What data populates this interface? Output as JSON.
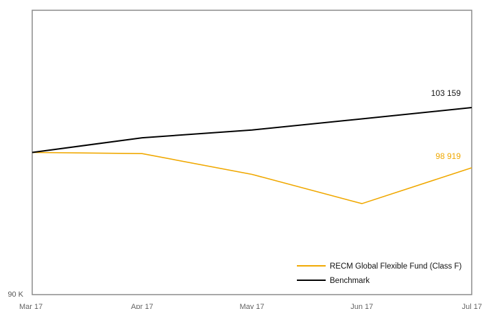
{
  "chart_data": {
    "type": "line",
    "categories": [
      "Mar 17",
      "Apr 17",
      "May 17",
      "Jun 17",
      "Jul 17"
    ],
    "y_tick_labels": [
      {
        "value": 90000,
        "label": "90 K"
      }
    ],
    "ylim": [
      90000,
      110000
    ],
    "series": [
      {
        "name": "RECM Global Flexible Fund (Class F)",
        "color": "#F0A800",
        "values": [
          100000,
          99920,
          98460,
          96400,
          98919
        ],
        "end_label": "98 919"
      },
      {
        "name": "Benchmark",
        "color": "#000000",
        "values": [
          100000,
          101030,
          101580,
          102360,
          103159
        ],
        "end_label": "103 159"
      }
    ],
    "legend_position": "bottom-right",
    "grid": false
  }
}
